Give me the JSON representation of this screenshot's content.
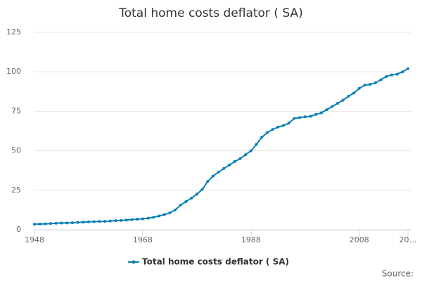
{
  "chart_data": {
    "type": "line",
    "title": "Total home costs deflator ( SA)",
    "x": [
      1948,
      1949,
      1950,
      1951,
      1952,
      1953,
      1954,
      1955,
      1956,
      1957,
      1958,
      1959,
      1960,
      1961,
      1962,
      1963,
      1964,
      1965,
      1966,
      1967,
      1968,
      1969,
      1970,
      1971,
      1972,
      1973,
      1974,
      1975,
      1976,
      1977,
      1978,
      1979,
      1980,
      1981,
      1982,
      1983,
      1984,
      1985,
      1986,
      1987,
      1988,
      1989,
      1990,
      1991,
      1992,
      1993,
      1994,
      1995,
      1996,
      1997,
      1998,
      1999,
      2000,
      2001,
      2002,
      2003,
      2004,
      2005,
      2006,
      2007,
      2008,
      2009,
      2010,
      2011,
      2012,
      2013,
      2014,
      2015,
      2016,
      2017
    ],
    "series": [
      {
        "name": "Total home costs deflator ( SA)",
        "color": "#0a7fb3",
        "values": [
          3.5,
          3.6,
          3.7,
          3.9,
          4.1,
          4.2,
          4.3,
          4.4,
          4.6,
          4.8,
          5.0,
          5.1,
          5.2,
          5.3,
          5.5,
          5.7,
          5.9,
          6.1,
          6.4,
          6.7,
          6.9,
          7.3,
          7.9,
          8.7,
          9.6,
          10.7,
          12.5,
          15.6,
          17.8,
          20.0,
          22.5,
          25.5,
          30.5,
          34.0,
          36.5,
          38.8,
          41.0,
          43.2,
          45.0,
          47.5,
          50.0,
          54.0,
          58.5,
          61.5,
          63.5,
          65.0,
          66.0,
          67.5,
          70.5,
          71.0,
          71.5,
          71.8,
          73.0,
          74.0,
          76.0,
          78.0,
          80.0,
          82.0,
          84.5,
          86.5,
          89.5,
          91.5,
          92.0,
          93.0,
          95.0,
          97.0,
          98.0,
          98.5,
          100.0,
          102.0
        ]
      }
    ],
    "xlim": [
      1948,
      2017
    ],
    "xticks": [
      1948,
      1968,
      1988,
      2008,
      {
        "value": 2017,
        "label": "20…"
      }
    ],
    "ylim": [
      0,
      125
    ],
    "yticks": [
      0,
      25,
      50,
      75,
      100,
      125
    ],
    "grid": true,
    "source": "Source:"
  }
}
